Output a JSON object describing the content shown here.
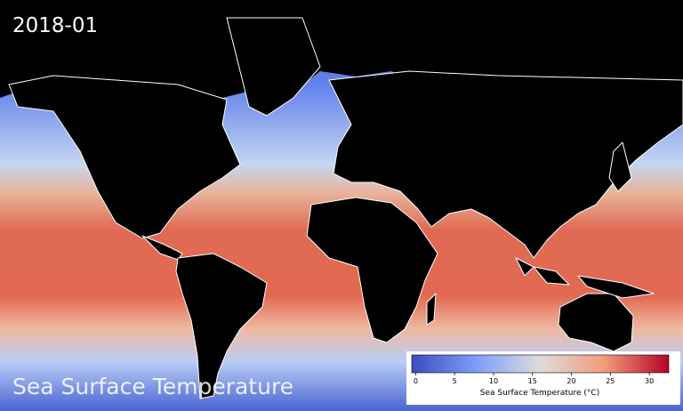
{
  "date": "2018-01",
  "caption": "Sea Surface Temperature",
  "colorbar": {
    "label": "Sea Surface Temperature (°C)",
    "lim": [
      -0.5,
      32.5
    ],
    "ticks": [
      0,
      5,
      10,
      15,
      20,
      25,
      30
    ]
  }
}
